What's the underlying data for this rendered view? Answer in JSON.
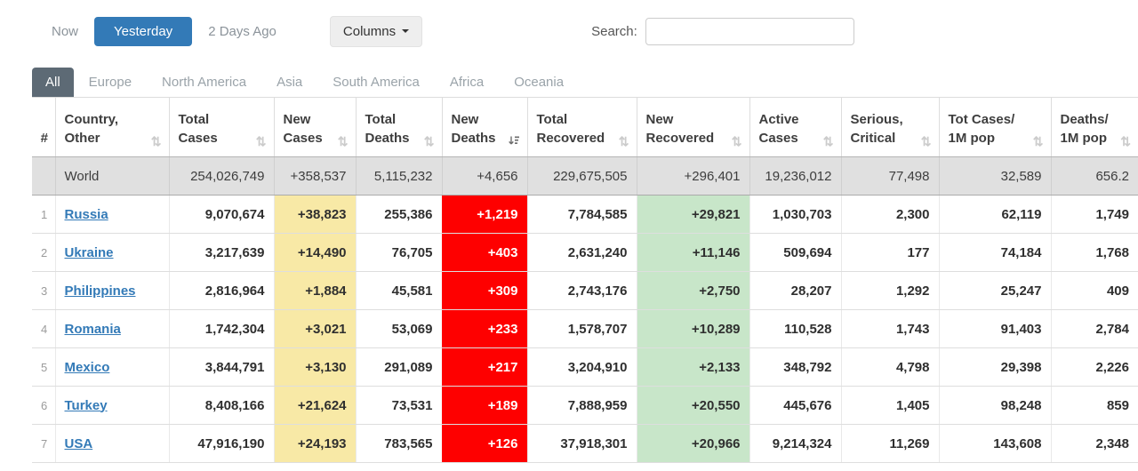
{
  "toolbar": {
    "time_filters": [
      {
        "label": "Now",
        "active": false
      },
      {
        "label": "Yesterday",
        "active": true
      },
      {
        "label": "2 Days Ago",
        "active": false
      }
    ],
    "columns_label": "Columns",
    "search_label": "Search:",
    "search_value": ""
  },
  "tabs": [
    {
      "label": "All",
      "active": true
    },
    {
      "label": "Europe",
      "active": false
    },
    {
      "label": "North America",
      "active": false
    },
    {
      "label": "Asia",
      "active": false
    },
    {
      "label": "South America",
      "active": false
    },
    {
      "label": "Africa",
      "active": false
    },
    {
      "label": "Oceania",
      "active": false
    }
  ],
  "table": {
    "columns": [
      {
        "id": "rank",
        "line1": "#",
        "line2": "",
        "sort": "none"
      },
      {
        "id": "country",
        "line1": "Country,",
        "line2": "Other",
        "sort": "unsorted"
      },
      {
        "id": "total-cases",
        "line1": "Total",
        "line2": "Cases",
        "sort": "unsorted"
      },
      {
        "id": "new-cases",
        "line1": "New",
        "line2": "Cases",
        "sort": "unsorted"
      },
      {
        "id": "total-deaths",
        "line1": "Total",
        "line2": "Deaths",
        "sort": "unsorted"
      },
      {
        "id": "new-deaths",
        "line1": "New",
        "line2": "Deaths",
        "sort": "desc"
      },
      {
        "id": "total-recovered",
        "line1": "Total",
        "line2": "Recovered",
        "sort": "unsorted"
      },
      {
        "id": "new-recovered",
        "line1": "New",
        "line2": "Recovered",
        "sort": "unsorted"
      },
      {
        "id": "active-cases",
        "line1": "Active",
        "line2": "Cases",
        "sort": "unsorted"
      },
      {
        "id": "serious-critical",
        "line1": "Serious,",
        "line2": "Critical",
        "sort": "unsorted"
      },
      {
        "id": "cases-per-1m",
        "line1": "Tot Cases/",
        "line2": "1M pop",
        "sort": "unsorted"
      },
      {
        "id": "deaths-per-1m",
        "line1": "Deaths/",
        "line2": "1M pop",
        "sort": "unsorted"
      }
    ],
    "world_row": {
      "country": "World",
      "values": [
        "254,026,749",
        "+358,537",
        "5,115,232",
        "+4,656",
        "229,675,505",
        "+296,401",
        "19,236,012",
        "77,498",
        "32,589",
        "656.2"
      ]
    },
    "rows": [
      {
        "rank": "1",
        "country": "Russia",
        "values": [
          "9,070,674",
          "+38,823",
          "255,386",
          "+1,219",
          "7,784,585",
          "+29,821",
          "1,030,703",
          "2,300",
          "62,119",
          "1,749"
        ]
      },
      {
        "rank": "2",
        "country": "Ukraine",
        "values": [
          "3,217,639",
          "+14,490",
          "76,705",
          "+403",
          "2,631,240",
          "+11,146",
          "509,694",
          "177",
          "74,184",
          "1,768"
        ]
      },
      {
        "rank": "3",
        "country": "Philippines",
        "values": [
          "2,816,964",
          "+1,884",
          "45,581",
          "+309",
          "2,743,176",
          "+2,750",
          "28,207",
          "1,292",
          "25,247",
          "409"
        ]
      },
      {
        "rank": "4",
        "country": "Romania",
        "values": [
          "1,742,304",
          "+3,021",
          "53,069",
          "+233",
          "1,578,707",
          "+10,289",
          "110,528",
          "1,743",
          "91,403",
          "2,784"
        ]
      },
      {
        "rank": "5",
        "country": "Mexico",
        "values": [
          "3,844,791",
          "+3,130",
          "291,089",
          "+217",
          "3,204,910",
          "+2,133",
          "348,792",
          "4,798",
          "29,398",
          "2,226"
        ]
      },
      {
        "rank": "6",
        "country": "Turkey",
        "values": [
          "8,408,166",
          "+21,624",
          "73,531",
          "+189",
          "7,888,959",
          "+20,550",
          "445,676",
          "1,405",
          "98,248",
          "859"
        ]
      },
      {
        "rank": "7",
        "country": "USA",
        "values": [
          "47,916,190",
          "+24,193",
          "783,565",
          "+126",
          "37,918,301",
          "+20,966",
          "9,214,324",
          "11,269",
          "143,608",
          "2,348"
        ]
      }
    ]
  },
  "colors": {
    "active_button_blue": "#337ab7",
    "active_tab_gray": "#5d6a75",
    "new_cases_yellow": "#f8e9a6",
    "new_deaths_red": "#fe0000",
    "new_recovered_green": "#c8e6c9",
    "world_row_gray": "#e0e0e0",
    "link_blue": "#337ab7"
  }
}
